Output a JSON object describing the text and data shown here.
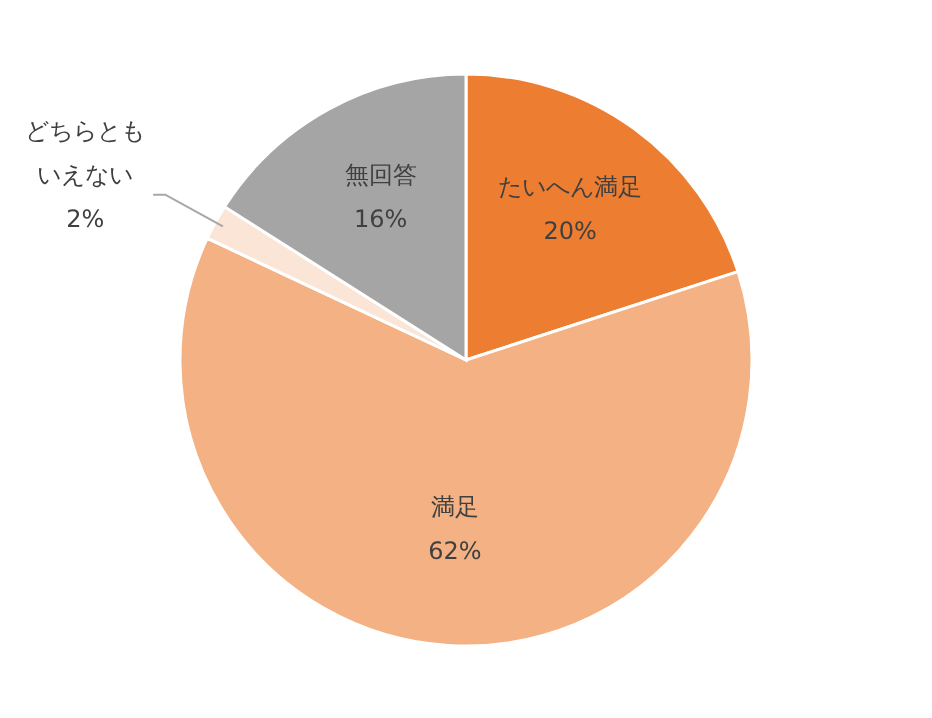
{
  "chart_data": {
    "type": "pie",
    "categories": [
      "たいへん満足",
      "満足",
      "どちらともいえない",
      "無回答"
    ],
    "values": [
      20,
      62,
      2,
      16
    ],
    "value_labels": [
      "20%",
      "62%",
      "2%",
      "16%"
    ],
    "colors": [
      "#ed7d31",
      "#f4b183",
      "#fbe5d6",
      "#a5a5a5"
    ]
  }
}
